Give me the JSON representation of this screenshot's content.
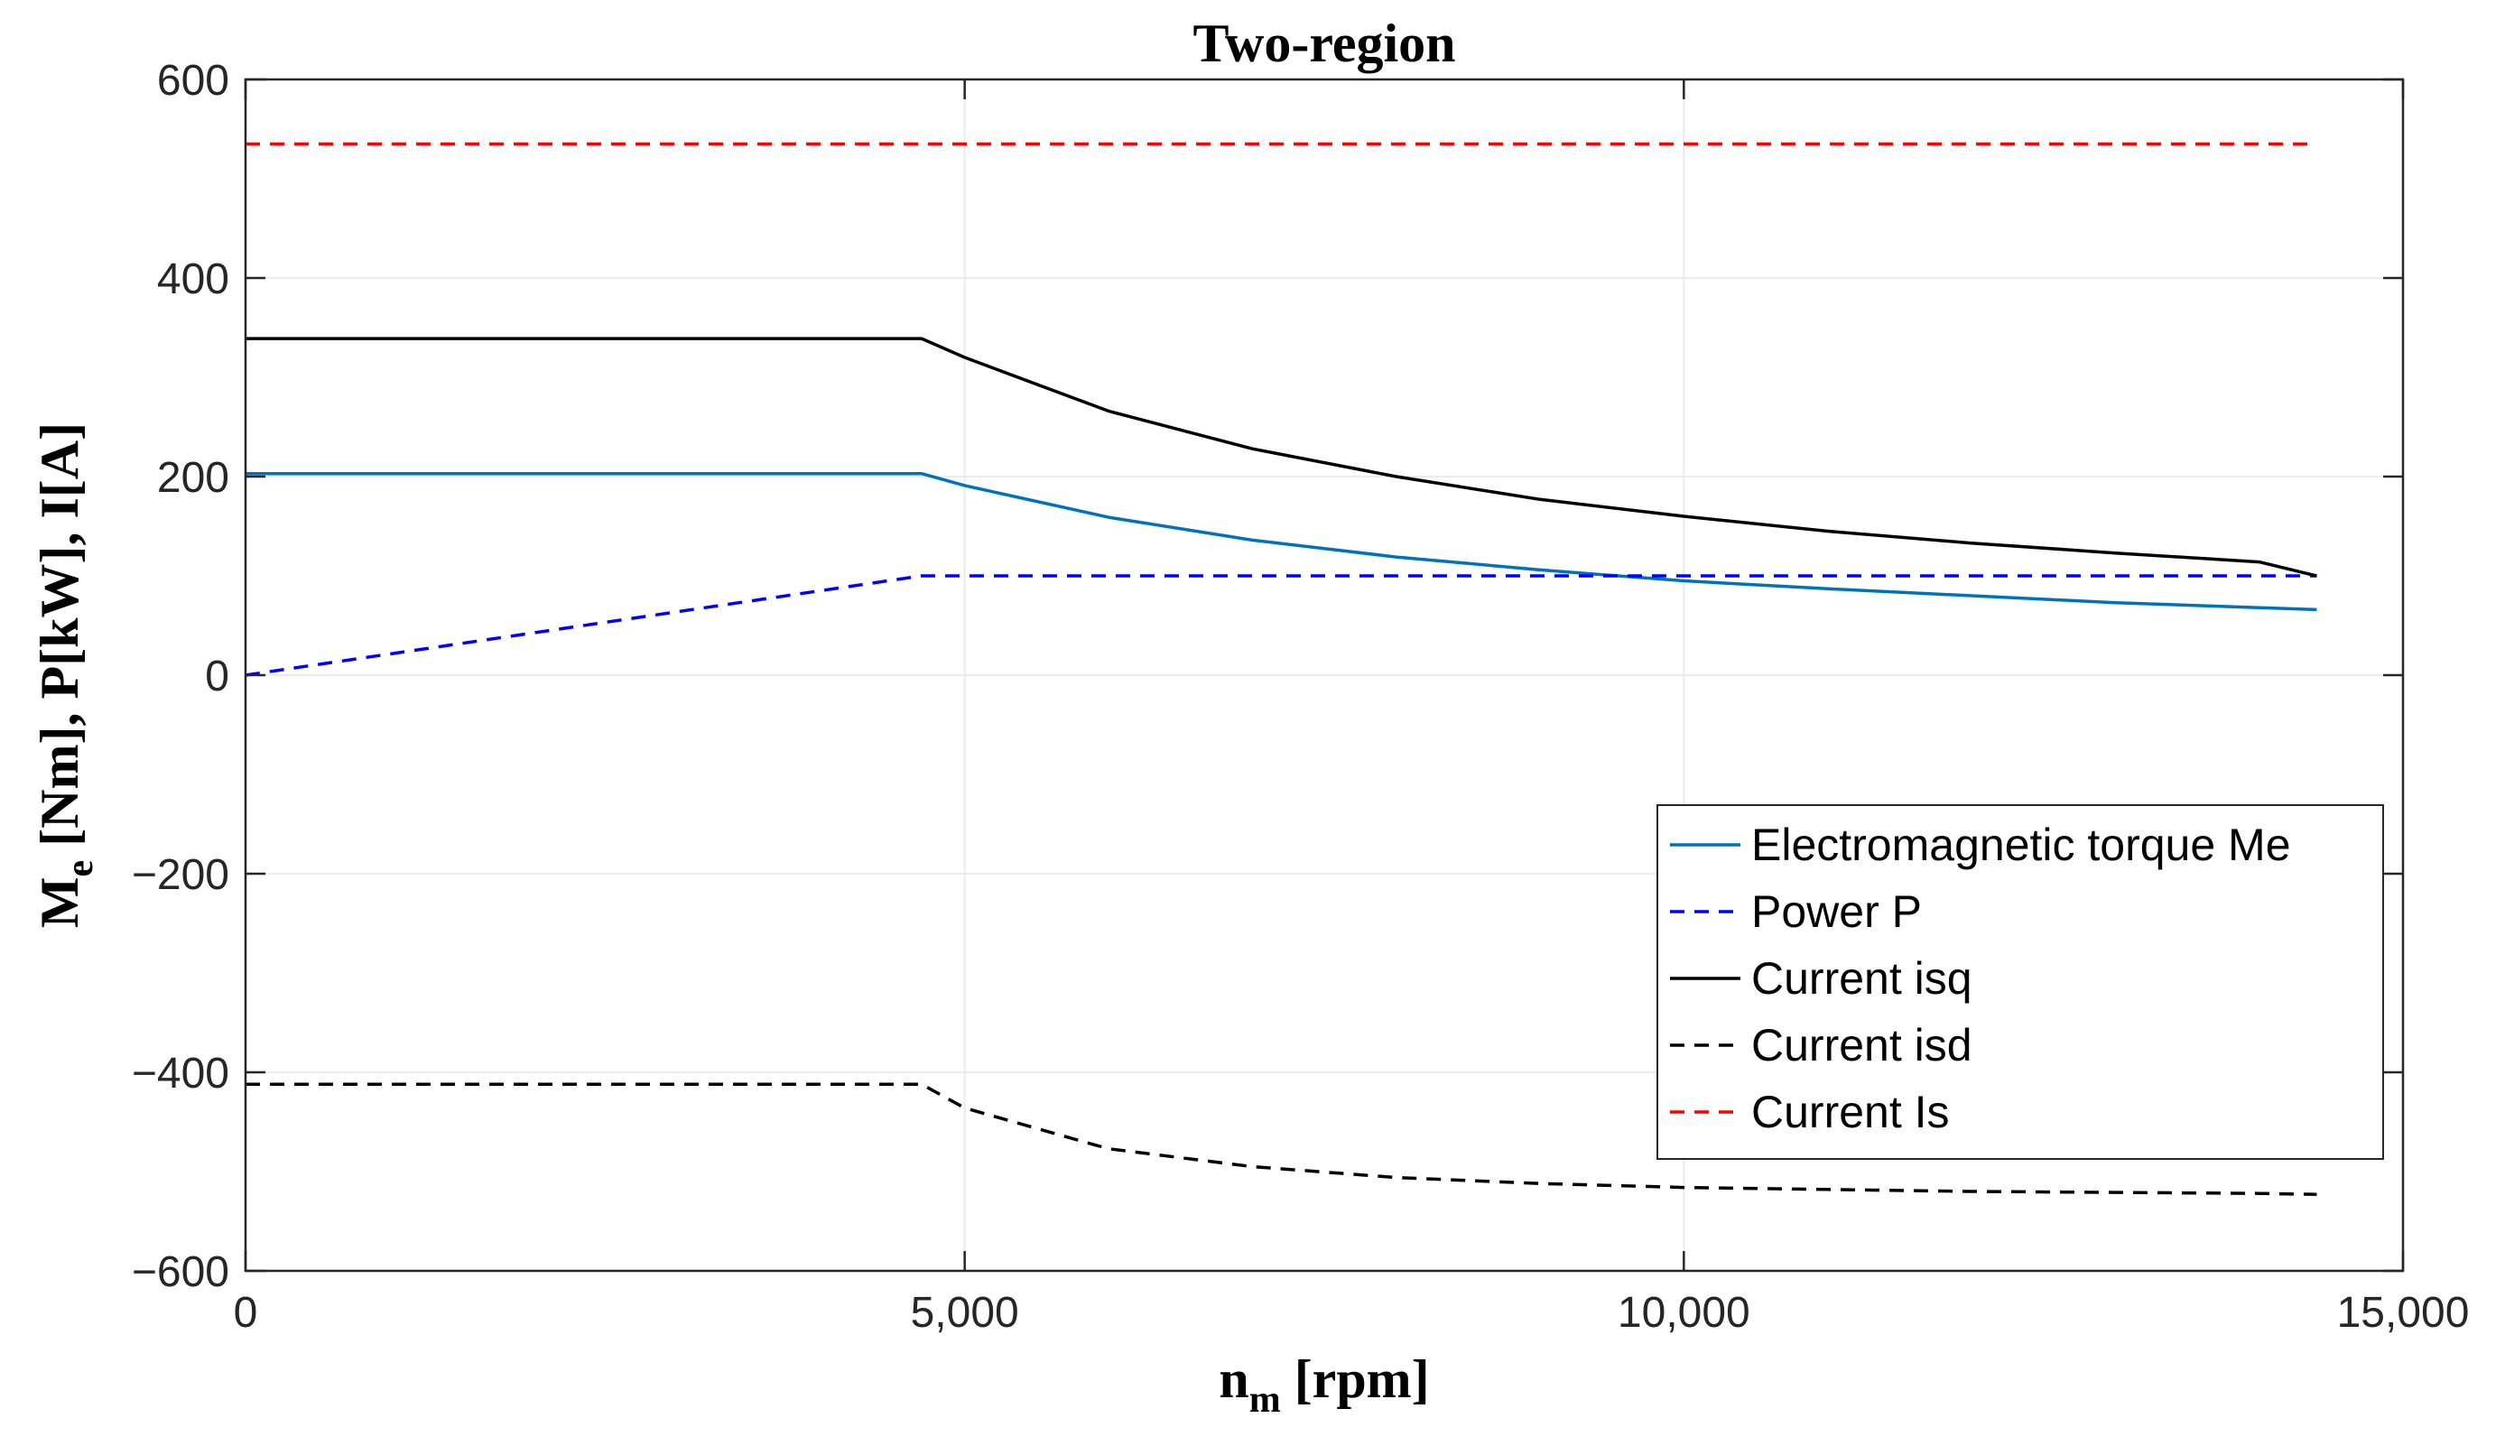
{
  "chart_data": {
    "type": "line",
    "title": "Two-region",
    "xlabel": {
      "main": "n",
      "sub": "m",
      "rest": " [rpm]"
    },
    "ylabel": {
      "main": "M",
      "sub": "e",
      "rest": " [Nm], P[kW], I[A]"
    },
    "xlim": [
      0,
      15000
    ],
    "ylim": [
      -600,
      600
    ],
    "xticks": [
      0,
      5000,
      10000,
      15000
    ],
    "xtick_labels": [
      "0",
      "5,000",
      "10,000",
      "15,000"
    ],
    "yticks": [
      -600,
      -400,
      -200,
      0,
      200,
      400,
      600
    ],
    "ytick_labels": [
      "−600",
      "−400",
      "−200",
      "0",
      "200",
      "400",
      "600"
    ],
    "grid": true,
    "legend_position": "lower-right",
    "base_speed_rpm": 4700,
    "max_speed_rpm": 14400,
    "series": [
      {
        "name": "Electromagnetic torque Me",
        "color": "#0072BD",
        "dash": "solid",
        "x": [
          0,
          4700,
          5000,
          6000,
          7000,
          8000,
          9000,
          10000,
          11000,
          12000,
          13000,
          14000,
          14400
        ],
        "y": [
          203,
          203,
          191,
          159,
          136,
          119,
          106,
          95,
          87,
          80,
          73,
          68,
          66
        ]
      },
      {
        "name": "Power P",
        "color": "#0000FF",
        "dash": "dashed",
        "x": [
          0,
          4700,
          5000,
          6000,
          8000,
          10000,
          12000,
          14400
        ],
        "y": [
          0,
          100,
          100,
          100,
          100,
          100,
          100,
          100
        ]
      },
      {
        "name": "Current isq",
        "color": "#000000",
        "dash": "solid",
        "x": [
          0,
          4700,
          5000,
          6000,
          7000,
          8000,
          9000,
          10000,
          11000,
          12000,
          13000,
          14000,
          14400
        ],
        "y": [
          339,
          339,
          320,
          266,
          228,
          200,
          177,
          160,
          145,
          133,
          123,
          114,
          100
        ]
      },
      {
        "name": "Current isd",
        "color": "#000000",
        "dash": "dashed",
        "x": [
          0,
          4700,
          5000,
          6000,
          7000,
          8000,
          9000,
          10000,
          11000,
          12000,
          13000,
          14000,
          14400
        ],
        "y": [
          -412,
          -412,
          -436,
          -477,
          -495,
          -506,
          -512,
          -516,
          -518,
          -520,
          -521,
          -522,
          -523
        ]
      },
      {
        "name": "Current Is",
        "color": "#FF0000",
        "dash": "dashed",
        "x": [
          0,
          14400
        ],
        "y": [
          535,
          535
        ]
      }
    ]
  }
}
